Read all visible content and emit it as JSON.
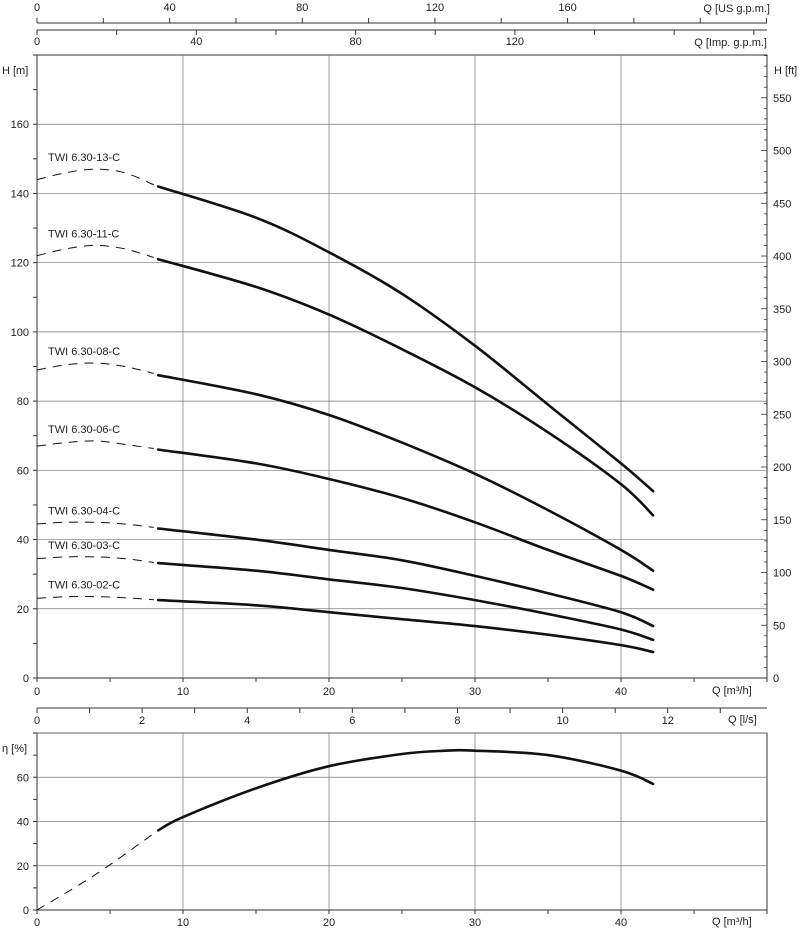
{
  "chart_data": [
    {
      "type": "line",
      "title": "",
      "xlabel": "Q [m³/h]",
      "ylabel": "H [m]",
      "ylabel_right": "H [ft]",
      "xlim": [
        0,
        50
      ],
      "ylim": [
        0,
        180
      ],
      "xticks": [
        0,
        10,
        20,
        30,
        40
      ],
      "yticks": [
        0,
        20,
        40,
        60,
        80,
        100,
        120,
        140,
        160
      ],
      "yticks_right": [
        0,
        50,
        100,
        150,
        200,
        250,
        300,
        350,
        400,
        450,
        500,
        550
      ],
      "top_axes": [
        {
          "label": "Q [US g.p.m.]",
          "ticks": [
            0,
            40,
            80,
            120,
            160
          ]
        },
        {
          "label": "Q [Imp. g.p.m.]",
          "ticks": [
            0,
            40,
            80,
            120
          ]
        }
      ],
      "grid": true,
      "series": [
        {
          "name": "TWI 6.30-13-C",
          "dashed": [
            [
              0,
              144
            ],
            [
              2,
              146
            ],
            [
              4,
              147
            ],
            [
              6,
              146
            ],
            [
              8,
              142.5
            ]
          ],
          "points": [
            [
              8.3,
              142
            ],
            [
              15,
              133
            ],
            [
              20,
              123
            ],
            [
              25,
              111
            ],
            [
              30,
              96
            ],
            [
              35,
              79
            ],
            [
              40,
              62
            ],
            [
              42.2,
              54
            ]
          ]
        },
        {
          "name": "TWI 6.30-11-C",
          "dashed": [
            [
              0,
              122
            ],
            [
              2,
              124
            ],
            [
              4,
              125
            ],
            [
              6,
              124
            ],
            [
              8,
              121.5
            ]
          ],
          "points": [
            [
              8.3,
              121
            ],
            [
              15,
              113
            ],
            [
              20,
              105
            ],
            [
              25,
              95
            ],
            [
              30,
              84
            ],
            [
              35,
              71
            ],
            [
              40,
              56
            ],
            [
              42.2,
              47
            ]
          ]
        },
        {
          "name": "TWI 6.30-08-C",
          "dashed": [
            [
              0,
              89
            ],
            [
              2,
              90.5
            ],
            [
              4,
              91
            ],
            [
              6,
              90
            ],
            [
              8,
              88
            ]
          ],
          "points": [
            [
              8.3,
              87.5
            ],
            [
              15,
              82
            ],
            [
              20,
              76
            ],
            [
              25,
              68
            ],
            [
              30,
              59
            ],
            [
              35,
              48.5
            ],
            [
              40,
              37
            ],
            [
              42.2,
              31
            ]
          ]
        },
        {
          "name": "TWI 6.30-06-C",
          "dashed": [
            [
              0,
              67
            ],
            [
              2,
              68
            ],
            [
              4,
              68.5
            ],
            [
              6,
              67.5
            ],
            [
              8,
              66.3
            ]
          ],
          "points": [
            [
              8.3,
              66
            ],
            [
              15,
              62
            ],
            [
              20,
              57.5
            ],
            [
              25,
              52
            ],
            [
              30,
              45
            ],
            [
              35,
              37
            ],
            [
              40,
              29.5
            ],
            [
              42.2,
              25.5
            ]
          ]
        },
        {
          "name": "TWI 6.30-04-C",
          "dashed": [
            [
              0,
              44.5
            ],
            [
              2,
              45
            ],
            [
              4,
              45
            ],
            [
              6,
              44.5
            ],
            [
              8,
              43.5
            ]
          ],
          "points": [
            [
              8.3,
              43.2
            ],
            [
              15,
              40
            ],
            [
              20,
              37
            ],
            [
              25,
              34
            ],
            [
              30,
              29.5
            ],
            [
              35,
              24.5
            ],
            [
              40,
              19
            ],
            [
              42.2,
              15
            ]
          ]
        },
        {
          "name": "TWI 6.30-03-C",
          "dashed": [
            [
              0,
              34.5
            ],
            [
              2,
              35
            ],
            [
              4,
              35
            ],
            [
              6,
              34.5
            ],
            [
              8,
              33.4
            ]
          ],
          "points": [
            [
              8.3,
              33.2
            ],
            [
              15,
              31
            ],
            [
              20,
              28.5
            ],
            [
              25,
              26
            ],
            [
              30,
              22.5
            ],
            [
              35,
              18.5
            ],
            [
              40,
              14
            ],
            [
              42.2,
              11
            ]
          ]
        },
        {
          "name": "TWI 6.30-02-C",
          "dashed": [
            [
              0,
              23
            ],
            [
              2,
              23.5
            ],
            [
              4,
              23.5
            ],
            [
              6,
              23.2
            ],
            [
              8,
              22.6
            ]
          ],
          "points": [
            [
              8.3,
              22.5
            ],
            [
              15,
              21
            ],
            [
              20,
              19
            ],
            [
              25,
              17
            ],
            [
              30,
              15
            ],
            [
              35,
              12.5
            ],
            [
              40,
              9.5
            ],
            [
              42.2,
              7.5
            ]
          ]
        }
      ]
    },
    {
      "type": "line",
      "title": "",
      "xlabel": "Q [m³/h]",
      "ylabel": "η [%]",
      "xlim": [
        0,
        50
      ],
      "ylim": [
        0,
        80
      ],
      "xticks": [
        0,
        10,
        20,
        30,
        40
      ],
      "yticks": [
        0,
        20,
        40,
        60
      ],
      "top_axis": {
        "label": "Q [l/s]",
        "ticks": [
          0,
          2,
          4,
          6,
          8,
          10,
          12
        ]
      },
      "grid": true,
      "series": [
        {
          "name": "",
          "dashed": [
            [
              0,
              0
            ],
            [
              4,
              16
            ],
            [
              8.3,
              36
            ]
          ],
          "points": [
            [
              8.3,
              36
            ],
            [
              10,
              42
            ],
            [
              15,
              55
            ],
            [
              20,
              65
            ],
            [
              25,
              70.5
            ],
            [
              28,
              72
            ],
            [
              30,
              72
            ],
            [
              35,
              70
            ],
            [
              40,
              63
            ],
            [
              42.2,
              57
            ]
          ]
        }
      ]
    }
  ]
}
